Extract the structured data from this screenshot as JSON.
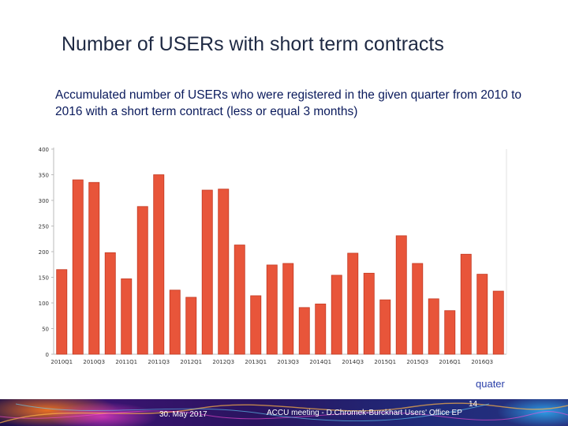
{
  "slide": {
    "title": "Number of USERs with short term contracts",
    "subtitle": "Accumulated number of USERs who were registered in the given quarter from 2010 to 2016 with a short term contract (less or equal 3 months)",
    "x_unit_label": "quater"
  },
  "footer": {
    "date": "30. May 2017",
    "page": "14",
    "text": "ACCU meeting - D.Chromek-Burckhart   Users' Office EP"
  },
  "colors": {
    "bar_fill": "#e8553a",
    "bar_stroke": "#c43a22",
    "axis": "#bbbbbb",
    "tick_text": "#333333"
  },
  "chart_data": {
    "type": "bar",
    "categories": [
      "2010Q1",
      "2010Q2",
      "2010Q3",
      "2010Q4",
      "2011Q1",
      "2011Q2",
      "2011Q3",
      "2011Q4",
      "2012Q1",
      "2012Q2",
      "2012Q3",
      "2012Q4",
      "2013Q1",
      "2013Q2",
      "2013Q3",
      "2013Q4",
      "2014Q1",
      "2014Q2",
      "2014Q3",
      "2014Q4",
      "2015Q1",
      "2015Q2",
      "2015Q3",
      "2015Q4",
      "2016Q1",
      "2016Q2",
      "2016Q3",
      "2016Q4"
    ],
    "tick_labels": [
      "2010Q1",
      "",
      "2010Q3",
      "",
      "2011Q1",
      "",
      "2011Q3",
      "",
      "2012Q1",
      "",
      "2012Q3",
      "",
      "2013Q1",
      "",
      "2013Q3",
      "",
      "2014Q1",
      "",
      "2014Q3",
      "",
      "2015Q1",
      "",
      "2015Q3",
      "",
      "2016Q1",
      "",
      "2016Q3",
      ""
    ],
    "values": [
      165,
      340,
      335,
      198,
      147,
      288,
      350,
      125,
      111,
      320,
      322,
      213,
      114,
      174,
      177,
      91,
      98,
      154,
      197,
      158,
      106,
      231,
      177,
      108,
      85,
      195,
      156,
      123
    ],
    "yticks": [
      0,
      50,
      100,
      150,
      200,
      250,
      300,
      350,
      400
    ],
    "ylim": [
      0,
      400
    ],
    "xlabel": "quater",
    "ylabel": "",
    "grid": false,
    "legend": "none"
  }
}
